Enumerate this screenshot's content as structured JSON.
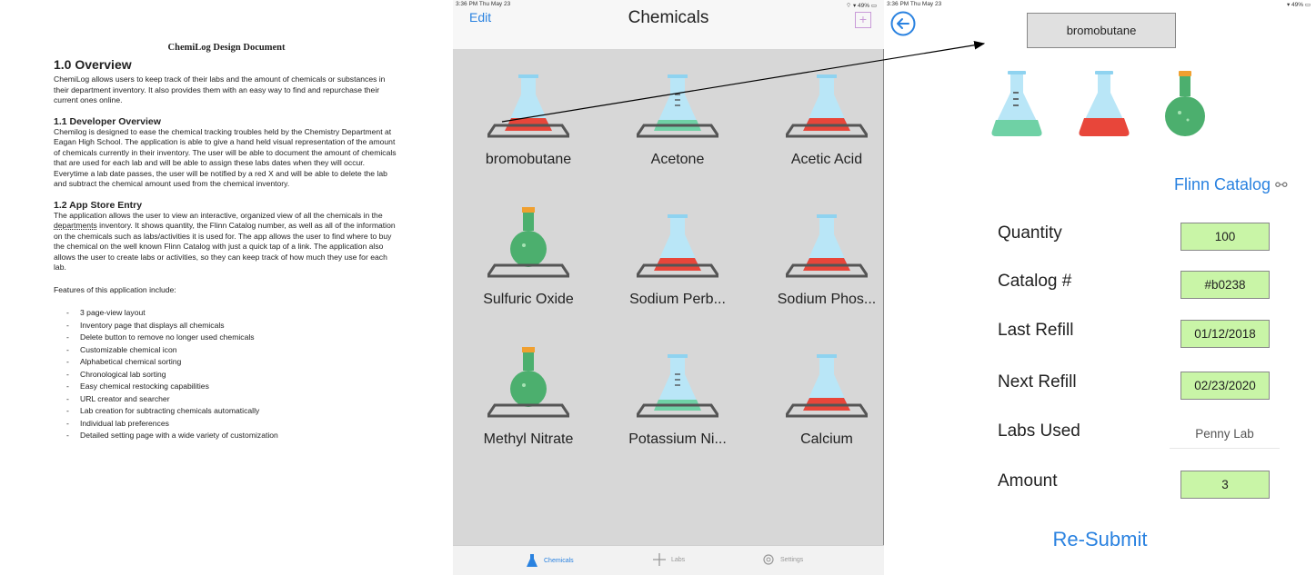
{
  "document": {
    "title": "ChemiLog Design Document",
    "overview_heading": "1.0 Overview",
    "overview_text": "ChemiLog allows users to keep track of their labs and the amount of chemicals or substances in their department inventory. It also provides them with an easy way to find and repurchase their current ones online.",
    "dev_heading": "1.1 Developer Overview",
    "dev_text": "Chemilog is designed to ease the chemical tracking troubles held by the Chemistry Department at Eagan High School. The application is able to give a hand held visual representation of the amount of chemicals currently in their inventory. The user will be able to document the amount of chemicals that are used for each lab and will be able to assign these labs dates when they will occur. Everytime a lab date passes, the user will be notified by a red X and will be able to delete the lab and subtract the chemical amount used from the chemical inventory.",
    "store_heading": "1.2 App Store Entry",
    "store_text_a": "The application allows the user to view an interactive, organized view of all the chemicals in the ",
    "store_text_link": "departments",
    "store_text_b": " inventory. It shows quantity, the Flinn Catalog number, as well as all of the information on the chemicals such as labs/activities it is used for. The app allows the user to find where to buy the chemical on the well known Flinn Catalog with just a quick tap of a link. The application also allows the user to create labs or activities, so they can keep track of how much they use for each lab.",
    "features_intro": "Features of this application include:",
    "features": [
      "3 page-view layout",
      "Inventory page that displays all chemicals",
      "Delete button to remove no longer used chemicals",
      "Customizable chemical icon",
      "Alphabetical chemical sorting",
      "Chronological lab sorting",
      "Easy chemical restocking capabilities",
      "URL creator and searcher",
      "Lab creation for subtracting chemicals automatically",
      "Individual lab preferences",
      "Detailed setting page with a wide variety of customization"
    ]
  },
  "screen1": {
    "status_time": "3:36 PM  Thu May 23",
    "status_battery": "49%",
    "edit_label": "Edit",
    "title": "Chemicals",
    "add_label": "+",
    "chemicals": [
      {
        "name": "bromobutane",
        "icon": "flask-red-icon"
      },
      {
        "name": "Acetone",
        "icon": "flask-blue-icon"
      },
      {
        "name": "Acetic Acid",
        "icon": "flask-red-icon"
      },
      {
        "name": "Sulfuric Oxide",
        "icon": "round-flask-green-icon"
      },
      {
        "name": "Sodium Perb...",
        "icon": "flask-red-icon"
      },
      {
        "name": "Sodium Phos...",
        "icon": "flask-red-icon"
      },
      {
        "name": "Methyl Nitrate",
        "icon": "round-flask-green-icon"
      },
      {
        "name": "Potassium Ni...",
        "icon": "flask-blue-icon"
      },
      {
        "name": "Calcium",
        "icon": "flask-red-icon"
      }
    ],
    "tabs": [
      {
        "label": "Chemicals",
        "icon": "flask-icon"
      },
      {
        "label": "Labs",
        "icon": "plus-icon"
      },
      {
        "label": "Settings",
        "icon": "gear-icon"
      }
    ]
  },
  "screen2": {
    "status_time": "3:36 PM  Thu May 23",
    "status_battery": "49%",
    "chemical_name": "bromobutane",
    "flinn_label": "Flinn Catalog",
    "fields": [
      {
        "label": "Quantity",
        "value": "100"
      },
      {
        "label": "Catalog #",
        "value": "#b0238"
      },
      {
        "label": "Last Refill",
        "value": "01/12/2018"
      },
      {
        "label": "Next Refill",
        "value": "02/23/2020"
      },
      {
        "label": "Labs Used",
        "value": "Penny Lab"
      },
      {
        "label": "Amount",
        "value": "3"
      }
    ],
    "resubmit_label": "Re-Submit"
  },
  "colors": {
    "accent": "#2a82e0",
    "field_green": "#c9f5a7",
    "liquid_red": "#e8463a",
    "liquid_blue": "#8fd3f0",
    "liquid_green": "#4caf6e"
  }
}
